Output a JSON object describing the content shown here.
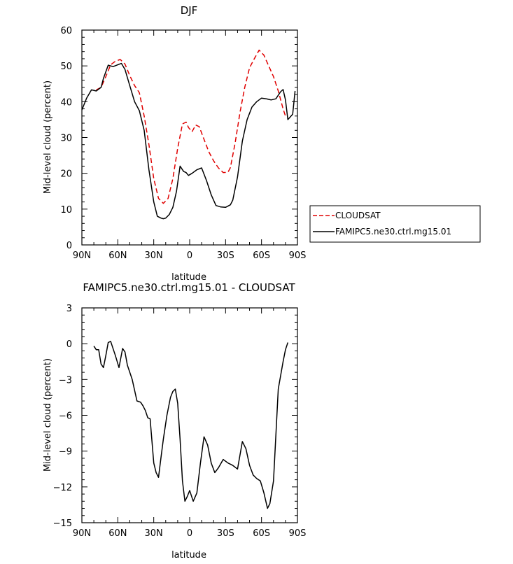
{
  "chart_data": [
    {
      "type": "line",
      "title": "DJF",
      "xlabel": "latitude",
      "ylabel": "Mid-level cloud (percent)",
      "xlim": [
        90,
        -90
      ],
      "ylim": [
        0,
        60
      ],
      "xticks": [
        90,
        60,
        30,
        0,
        -30,
        -60,
        -90
      ],
      "xtick_labels": [
        "90N",
        "60N",
        "30N",
        "0",
        "30S",
        "60S",
        "90S"
      ],
      "yticks": [
        0,
        10,
        20,
        30,
        40,
        50,
        60
      ],
      "ytick_labels": [
        "0",
        "10",
        "20",
        "30",
        "40",
        "50",
        "60"
      ],
      "legend": "right",
      "series": [
        {
          "name": "CLOUDSAT",
          "color": "#e00000",
          "dash": "dashed",
          "x": [
            78,
            74,
            70,
            66,
            62,
            58,
            54,
            50,
            46,
            42,
            38,
            34,
            30,
            26,
            22,
            18,
            14,
            10,
            6,
            3,
            1,
            -2,
            -5,
            -8,
            -12,
            -16,
            -20,
            -24,
            -28,
            -32,
            -34,
            -38,
            -42,
            -46,
            -50,
            -54,
            -58,
            -62,
            -64,
            -66,
            -70,
            -74,
            -78,
            -80
          ],
          "y": [
            43.3,
            44,
            47,
            50.3,
            51.3,
            51.8,
            50.5,
            47.3,
            44.5,
            42.5,
            36,
            28,
            18.5,
            13,
            11.6,
            13,
            18.5,
            27,
            33.8,
            34.3,
            32.8,
            31.6,
            33.5,
            33,
            29.5,
            26,
            23.5,
            21.5,
            20.2,
            20.3,
            21.6,
            28.5,
            37,
            44,
            49.5,
            52,
            54.4,
            53,
            51.5,
            50,
            47,
            43,
            38,
            36
          ]
        },
        {
          "name": "FAMIPC5.ne30.ctrl.mg15.01",
          "color": "#000000",
          "dash": "solid",
          "x": [
            90,
            86,
            82,
            78,
            74,
            72,
            68,
            64,
            60,
            57,
            54,
            50,
            46,
            42,
            38,
            34,
            30,
            27,
            24,
            22,
            20,
            17,
            14,
            11,
            8,
            5,
            3,
            1,
            -2,
            -6,
            -10,
            -14,
            -18,
            -22,
            -26,
            -30,
            -34,
            -36,
            -40,
            -44,
            -48,
            -52,
            -56,
            -60,
            -64,
            -68,
            -72,
            -76,
            -78,
            -80,
            -82,
            -86,
            -88
          ],
          "y": [
            37.7,
            41,
            43.3,
            43,
            44,
            46.5,
            50.2,
            49.8,
            50.3,
            50.7,
            49,
            44.5,
            40,
            37.5,
            32,
            21,
            12,
            8,
            7.5,
            7.3,
            7.5,
            8.5,
            10.5,
            15,
            22,
            20.5,
            20.2,
            19.4,
            20,
            21,
            21.5,
            18,
            14,
            11,
            10.6,
            10.5,
            11.2,
            12.5,
            19,
            29,
            35,
            38.5,
            40,
            41,
            40.8,
            40.5,
            40.8,
            42.8,
            43.4,
            40.5,
            35,
            36.5,
            43
          ]
        }
      ]
    },
    {
      "type": "line",
      "title": "FAMIPC5.ne30.ctrl.mg15.01 - CLOUDSAT",
      "xlabel": "latitude",
      "ylabel": "Mid-level cloud (percent)",
      "xlim": [
        90,
        -90
      ],
      "ylim": [
        -15,
        3
      ],
      "xticks": [
        90,
        60,
        30,
        0,
        -30,
        -60,
        -90
      ],
      "xtick_labels": [
        "90N",
        "60N",
        "30N",
        "0",
        "30S",
        "60S",
        "90S"
      ],
      "yticks": [
        -15,
        -12,
        -9,
        -6,
        -3,
        0,
        3
      ],
      "ytick_labels": [
        "−15",
        "−12",
        "−9",
        "−6",
        "−3",
        "0",
        "3"
      ],
      "series": [
        {
          "name": "",
          "color": "#000000",
          "dash": "solid",
          "x": [
            80,
            78,
            76,
            74,
            72,
            70,
            68,
            66,
            62,
            59,
            56,
            54,
            52,
            48,
            44,
            41,
            39,
            37,
            35,
            33,
            30,
            28,
            26,
            24,
            22,
            19,
            16,
            14,
            12,
            10,
            8,
            6,
            4,
            2,
            0,
            -3,
            -6,
            -9,
            -12,
            -15,
            -18,
            -21,
            -24,
            -28,
            -32,
            -36,
            -40,
            -44,
            -47,
            -50,
            -53,
            -56,
            -59,
            -62,
            -65,
            -67,
            -70,
            -74,
            -78,
            -80,
            -82
          ],
          "y": [
            -0.2,
            -0.5,
            -0.5,
            -1.7,
            -2,
            -1,
            0.1,
            0.2,
            -1,
            -2,
            -0.4,
            -0.7,
            -1.8,
            -3,
            -4.8,
            -4.9,
            -5.2,
            -5.6,
            -6.2,
            -6.3,
            -10,
            -10.8,
            -11.2,
            -9.6,
            -8,
            -6,
            -4.5,
            -4,
            -3.8,
            -5,
            -8,
            -11.5,
            -13.2,
            -12.8,
            -12.3,
            -13.2,
            -12.5,
            -10,
            -7.8,
            -8.5,
            -10,
            -10.8,
            -10.4,
            -9.7,
            -10,
            -10.2,
            -10.5,
            -8.2,
            -8.8,
            -10.2,
            -11,
            -11.3,
            -11.5,
            -12.5,
            -13.8,
            -13.4,
            -11.5,
            -3.8,
            -1.5,
            -0.5,
            0.1
          ]
        }
      ]
    }
  ],
  "legend": {
    "entries": [
      "CLOUDSAT",
      "FAMIPC5.ne30.ctrl.mg15.01"
    ]
  }
}
